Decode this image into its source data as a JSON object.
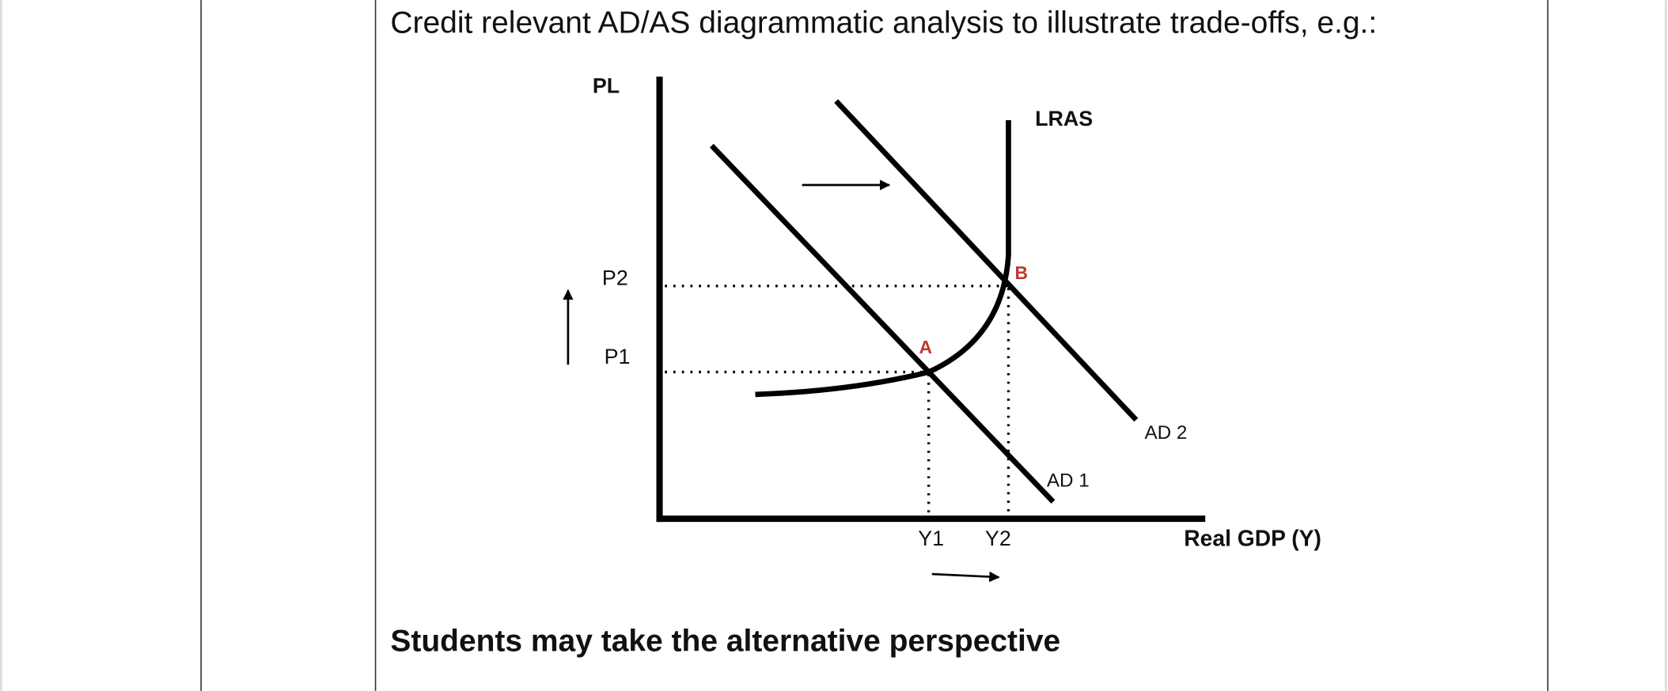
{
  "text": "Credit relevant AD/AS diagrammatic analysis to illustrate trade-offs, e.g.:",
  "diagram": {
    "y_axis_label": "PL",
    "x_axis_label": "Real GDP (Y)",
    "curves": {
      "lras": "LRAS",
      "ad1": "AD 1",
      "ad2": "AD 2"
    },
    "points": {
      "a": "A",
      "b": "B"
    },
    "price_levels": [
      "P2",
      "P1"
    ],
    "outputs": [
      "Y1",
      "Y2"
    ]
  },
  "footer": "Students may take the alternative perspective"
}
